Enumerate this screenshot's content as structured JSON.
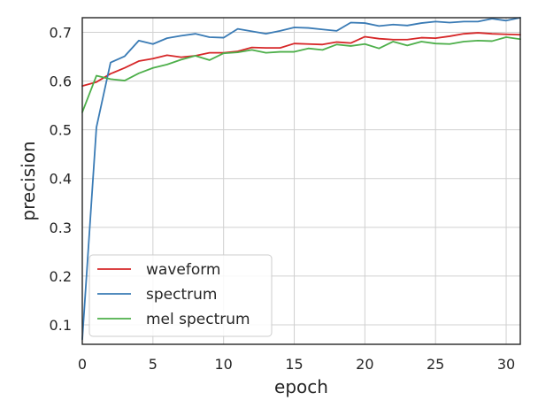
{
  "chart_data": {
    "type": "line",
    "title": "",
    "xlabel": "epoch",
    "ylabel": "precision",
    "xlim": [
      0,
      31
    ],
    "ylim": [
      0.06,
      0.73
    ],
    "xticks": [
      0,
      5,
      10,
      15,
      20,
      25,
      30
    ],
    "yticks": [
      0.1,
      0.2,
      0.3,
      0.4,
      0.5,
      0.6,
      0.7
    ],
    "grid": true,
    "legend_position": "lower-left",
    "x": [
      0,
      1,
      2,
      3,
      4,
      5,
      6,
      7,
      8,
      9,
      10,
      11,
      12,
      13,
      14,
      15,
      16,
      17,
      18,
      19,
      20,
      21,
      22,
      23,
      24,
      25,
      26,
      27,
      28,
      29,
      30,
      31
    ],
    "series": [
      {
        "name": "waveform",
        "color": "#d62728",
        "values": [
          0.59,
          0.598,
          0.615,
          0.627,
          0.641,
          0.646,
          0.653,
          0.649,
          0.652,
          0.658,
          0.658,
          0.661,
          0.669,
          0.668,
          0.668,
          0.677,
          0.676,
          0.675,
          0.68,
          0.678,
          0.691,
          0.687,
          0.685,
          0.685,
          0.689,
          0.688,
          0.692,
          0.697,
          0.699,
          0.697,
          0.696,
          0.695
        ]
      },
      {
        "name": "spectrum",
        "color": "#3a7bb5",
        "values": [
          0.07,
          0.505,
          0.638,
          0.651,
          0.683,
          0.676,
          0.688,
          0.693,
          0.697,
          0.69,
          0.689,
          0.707,
          0.702,
          0.697,
          0.703,
          0.71,
          0.709,
          0.706,
          0.703,
          0.72,
          0.719,
          0.713,
          0.716,
          0.714,
          0.719,
          0.722,
          0.72,
          0.722,
          0.722,
          0.728,
          0.724,
          0.73
        ]
      },
      {
        "name": "mel spectrum",
        "color": "#4daf4a",
        "values": [
          0.536,
          0.611,
          0.604,
          0.601,
          0.616,
          0.627,
          0.634,
          0.644,
          0.652,
          0.643,
          0.657,
          0.659,
          0.664,
          0.658,
          0.66,
          0.66,
          0.667,
          0.664,
          0.675,
          0.672,
          0.676,
          0.667,
          0.681,
          0.673,
          0.681,
          0.677,
          0.676,
          0.681,
          0.683,
          0.682,
          0.69,
          0.686
        ]
      }
    ]
  }
}
